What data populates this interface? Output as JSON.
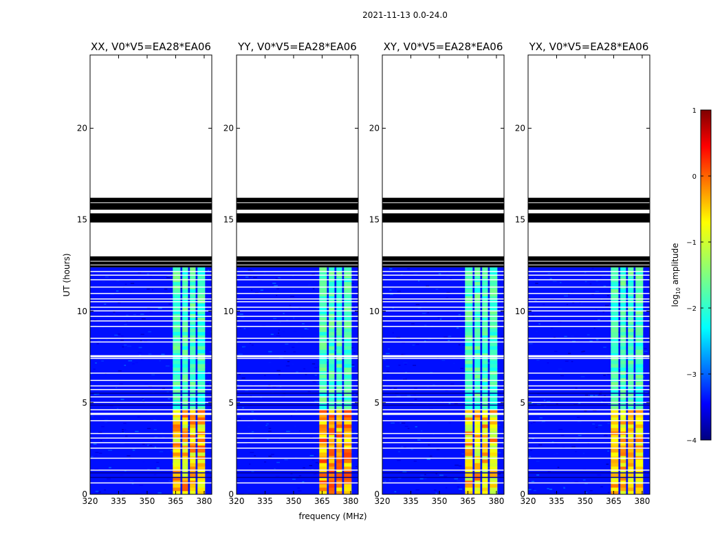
{
  "chart_data": {
    "type": "heatmap",
    "suptitle": "2021-11-13 0.0-24.0",
    "xlabel": "frequency (MHz)",
    "ylabel": "UT (hours)",
    "xlim": [
      320,
      384
    ],
    "ylim": [
      0,
      24
    ],
    "xticks": [
      320,
      335,
      350,
      365,
      380
    ],
    "yticks": [
      0,
      5,
      10,
      15,
      20
    ],
    "panels": [
      {
        "title": "XX, V0*V5=EA28*EA06",
        "band_level": [
          -1.2,
          -0.3
        ]
      },
      {
        "title": "YY, V0*V5=EA28*EA06",
        "band_level": [
          -1.0,
          -0.2
        ]
      },
      {
        "title": "XY, V0*V5=EA28*EA06",
        "band_level": [
          -1.3,
          -0.4
        ]
      },
      {
        "title": "YX, V0*V5=EA28*EA06",
        "band_level": [
          -1.1,
          -0.5
        ]
      }
    ],
    "data_coverage_hours": [
      0,
      12.4
    ],
    "flagged_hours": [
      [
        12.4,
        13.0
      ],
      [
        14.85,
        15.35
      ],
      [
        15.55,
        16.2
      ]
    ],
    "no_data_hours": [
      [
        13.0,
        14.85
      ],
      [
        15.35,
        15.55
      ],
      [
        16.2,
        24
      ]
    ],
    "rfi_band_mhz": [
      363.5,
      380.5
    ],
    "rfi_subbands_mhz": [
      [
        363.5,
        367.5
      ],
      [
        368.5,
        371.5
      ],
      [
        372.5,
        375.5
      ],
      [
        376.5,
        380.5
      ]
    ],
    "rfi_strong_hours": [
      0,
      4.6
    ],
    "background_log_amplitude": -3.3,
    "colorbar": {
      "label": "log",
      "label_sub": "10",
      "label_rest": " amplitude",
      "range": [
        -4,
        1
      ],
      "ticks": [
        "1",
        "0",
        "−1",
        "−2",
        "−3",
        "−4"
      ],
      "colormap": "jet"
    }
  }
}
